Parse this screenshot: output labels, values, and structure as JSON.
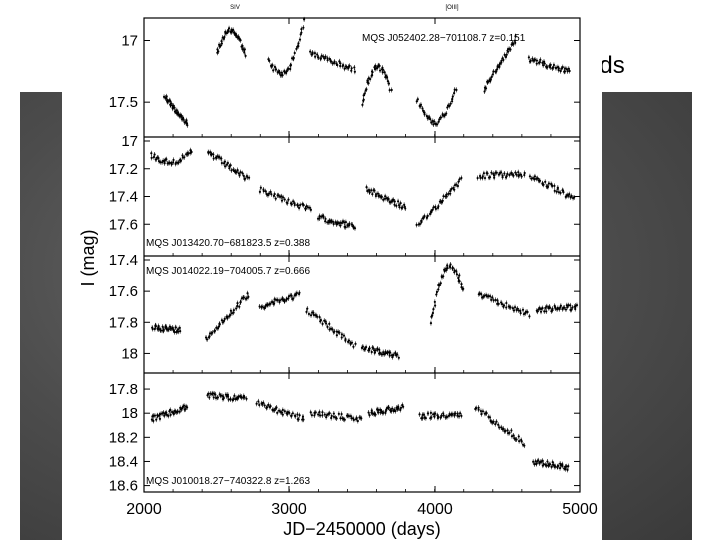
{
  "slide": {
    "title_fragment": "uds"
  },
  "chart_data": {
    "type": "scatter",
    "xlabel": "JD−2450000 (days)",
    "ylabel": "I (mag)",
    "x_ticks": [
      "2000",
      "3000",
      "4000",
      "5000"
    ],
    "xlim": [
      2000,
      5000
    ],
    "top_labels": [
      "SIV",
      "[OIII]"
    ],
    "panels": [
      {
        "label": "MQS J052402.28−701108.7  z=0.151",
        "ylim": [
          16.85,
          17.75
        ],
        "y_ticks": [
          "17",
          "17.5"
        ],
        "segments": [
          {
            "x0": 2140,
            "x1": 2300,
            "y0": 17.45,
            "y1": 17.68
          },
          {
            "x0": 2500,
            "x1": 2700,
            "y0": 17.1,
            "y1": 17.12,
            "peak": 16.92
          },
          {
            "x0": 2860,
            "x1": 3100,
            "y0": 17.17,
            "y1": 16.85,
            "trough": 17.25
          },
          {
            "x0": 3140,
            "x1": 3450,
            "y0": 17.1,
            "y1": 17.24
          },
          {
            "x0": 3500,
            "x1": 3700,
            "y0": 17.5,
            "y1": 17.4,
            "peak": 17.22
          },
          {
            "x0": 3880,
            "x1": 4150,
            "y0": 17.48,
            "y1": 17.38,
            "trough": 17.66
          },
          {
            "x0": 4340,
            "x1": 4560,
            "y0": 17.4,
            "y1": 16.98
          },
          {
            "x0": 4650,
            "x1": 4930,
            "y0": 17.15,
            "y1": 17.25
          }
        ]
      },
      {
        "label": "MQS J013420.70−681823.5  z=0.388",
        "ylim": [
          17.0,
          17.8
        ],
        "y_ticks": [
          "17",
          "17.2",
          "17.4",
          "17.6"
        ],
        "segments": [
          {
            "x0": 2050,
            "x1": 2330,
            "y0": 17.1,
            "y1": 17.08,
            "trough": 17.15
          },
          {
            "x0": 2440,
            "x1": 2720,
            "y0": 17.08,
            "y1": 17.28
          },
          {
            "x0": 2800,
            "x1": 3150,
            "y0": 17.35,
            "y1": 17.5
          },
          {
            "x0": 3200,
            "x1": 3450,
            "y0": 17.55,
            "y1": 17.62
          },
          {
            "x0": 3530,
            "x1": 3800,
            "y0": 17.35,
            "y1": 17.48
          },
          {
            "x0": 3880,
            "x1": 4180,
            "y0": 17.62,
            "y1": 17.28
          },
          {
            "x0": 4300,
            "x1": 4620,
            "y0": 17.25,
            "y1": 17.24
          },
          {
            "x0": 4660,
            "x1": 4960,
            "y0": 17.25,
            "y1": 17.42
          }
        ]
      },
      {
        "label": "MQS J014022.19−704005.7  z=0.666",
        "ylim": [
          17.4,
          18.1
        ],
        "y_ticks": [
          "17.4",
          "17.6",
          "17.8",
          "18"
        ],
        "segments": [
          {
            "x0": 2060,
            "x1": 2250,
            "y0": 17.83,
            "y1": 17.85
          },
          {
            "x0": 2430,
            "x1": 2720,
            "y0": 17.9,
            "y1": 17.62
          },
          {
            "x0": 2800,
            "x1": 3070,
            "y0": 17.7,
            "y1": 17.62
          },
          {
            "x0": 3120,
            "x1": 3450,
            "y0": 17.72,
            "y1": 17.95
          },
          {
            "x0": 3500,
            "x1": 3750,
            "y0": 17.96,
            "y1": 18.02
          },
          {
            "x0": 3970,
            "x1": 4200,
            "y0": 17.8,
            "y1": 17.6,
            "peak": 17.45
          },
          {
            "x0": 4300,
            "x1": 4650,
            "y0": 17.62,
            "y1": 17.75
          },
          {
            "x0": 4700,
            "x1": 4980,
            "y0": 17.72,
            "y1": 17.7
          }
        ]
      },
      {
        "label": "MQS J010018.27−740322.8  z=1.263",
        "ylim": [
          17.7,
          18.62
        ],
        "y_ticks": [
          "17.8",
          "18",
          "18.2",
          "18.4",
          "18.6"
        ],
        "segments": [
          {
            "x0": 2050,
            "x1": 2300,
            "y0": 18.05,
            "y1": 17.95
          },
          {
            "x0": 2440,
            "x1": 2700,
            "y0": 17.85,
            "y1": 17.88
          },
          {
            "x0": 2780,
            "x1": 3100,
            "y0": 17.92,
            "y1": 18.05
          },
          {
            "x0": 3150,
            "x1": 3500,
            "y0": 18.0,
            "y1": 18.05
          },
          {
            "x0": 3550,
            "x1": 3780,
            "y0": 18.0,
            "y1": 17.95
          },
          {
            "x0": 3900,
            "x1": 4180,
            "y0": 18.02,
            "y1": 18.02
          },
          {
            "x0": 4280,
            "x1": 4620,
            "y0": 17.95,
            "y1": 18.25
          },
          {
            "x0": 4680,
            "x1": 4920,
            "y0": 18.4,
            "y1": 18.45
          }
        ]
      }
    ],
    "colors": {
      "points": "#000000",
      "frame": "#000000",
      "sky": "#555555"
    }
  }
}
